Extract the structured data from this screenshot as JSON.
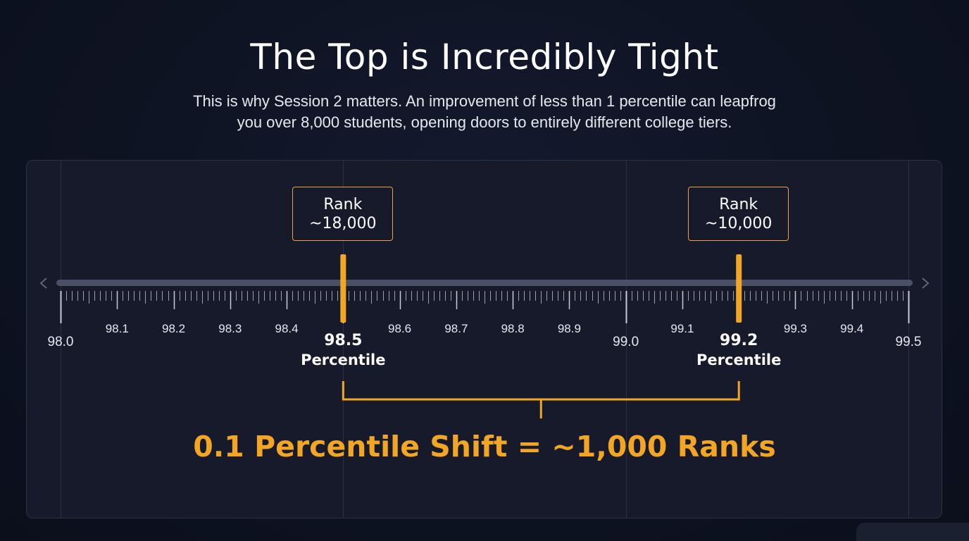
{
  "title": "The Top is Incredibly Tight",
  "subtitle_line1": "This is why Session 2 matters. An improvement of less than 1 percentile can leapfrog",
  "subtitle_line2": "you over 8,000 students, opening doors to entirely different college tiers.",
  "scale": {
    "min": 98.0,
    "max": 99.5,
    "major_ticks": [
      "98.0",
      "99.0",
      "99.5"
    ],
    "minor_ticks": [
      "98.1",
      "98.2",
      "98.3",
      "98.4",
      "98.6",
      "98.7",
      "98.8",
      "98.9",
      "99.1",
      "99.3",
      "99.4"
    ],
    "nav_left_icon": "chevron-left-icon",
    "nav_right_icon": "chevron-right-icon"
  },
  "markers": [
    {
      "value": 98.5,
      "value_label": "98.5",
      "unit_label": "Percentile",
      "rank_label": "Rank",
      "rank_value": "~18,000"
    },
    {
      "value": 99.2,
      "value_label": "99.2",
      "unit_label": "Percentile",
      "rank_label": "Rank",
      "rank_value": "~10,000"
    }
  ],
  "shift_caption": "0.1 Percentile Shift = ~1,000 Ranks",
  "colors": {
    "accent": "#f2a623",
    "background": "#0e1322",
    "panel": "#161a2a",
    "track": "#4a5068"
  }
}
